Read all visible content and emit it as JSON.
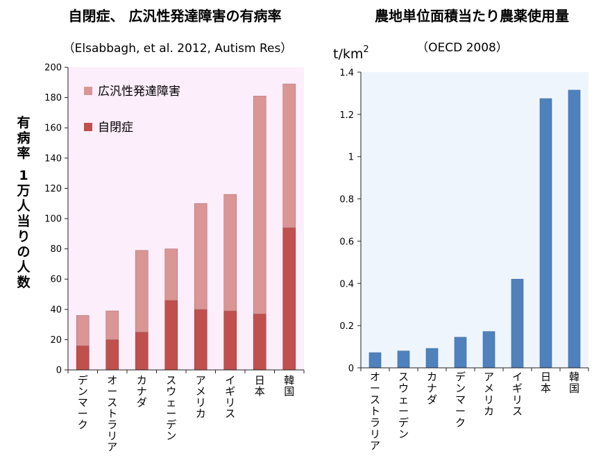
{
  "chart_data": [
    {
      "type": "bar",
      "stacked": true,
      "title": "自閉症、 広汎性発達障害の有病率",
      "subtitle": "（Elsabbagh, et al. 2012, Autism Res）",
      "ylabel": "有病率 1万人当りの人数",
      "ylim": [
        0,
        200
      ],
      "yticks": [
        0,
        20,
        40,
        60,
        80,
        100,
        120,
        140,
        160,
        180,
        200
      ],
      "categories": [
        "デンマーク",
        "オーストラリア",
        "カナダ",
        "スウェーデン",
        "アメリカ",
        "イギリス",
        "日本",
        "韓国"
      ],
      "series": [
        {
          "name": "自閉症",
          "color": "#c0504d",
          "values": [
            16,
            20,
            25,
            46,
            40,
            39,
            37,
            94
          ]
        },
        {
          "name": "広汎性発達障害",
          "color": "#d99694",
          "values": [
            20,
            19,
            54,
            34,
            70,
            77,
            144,
            95
          ]
        }
      ],
      "legend_order": [
        1,
        0
      ],
      "legend_position": "top-left",
      "plot_background": "#fdeefb"
    },
    {
      "type": "bar",
      "title": "農地単位面積当たり農薬使用量",
      "subtitle": "（OECD 2008）",
      "unit_prefix": "t/km",
      "unit_superscript": "2",
      "ylim": [
        0,
        1.4
      ],
      "yticks": [
        "0",
        "0.2",
        "0.4",
        "0.6",
        "0.8",
        "1",
        "1.2",
        "1.4"
      ],
      "categories": [
        "オーストラリア",
        "スウェーデン",
        "カナダ",
        "デンマーク",
        "アメリカ",
        "イギリス",
        "日本",
        "韓国"
      ],
      "values": [
        0.072,
        0.08,
        0.092,
        0.145,
        0.172,
        0.42,
        1.275,
        1.315
      ],
      "color": "#4f81bd",
      "plot_background": "#eef5fd"
    }
  ]
}
